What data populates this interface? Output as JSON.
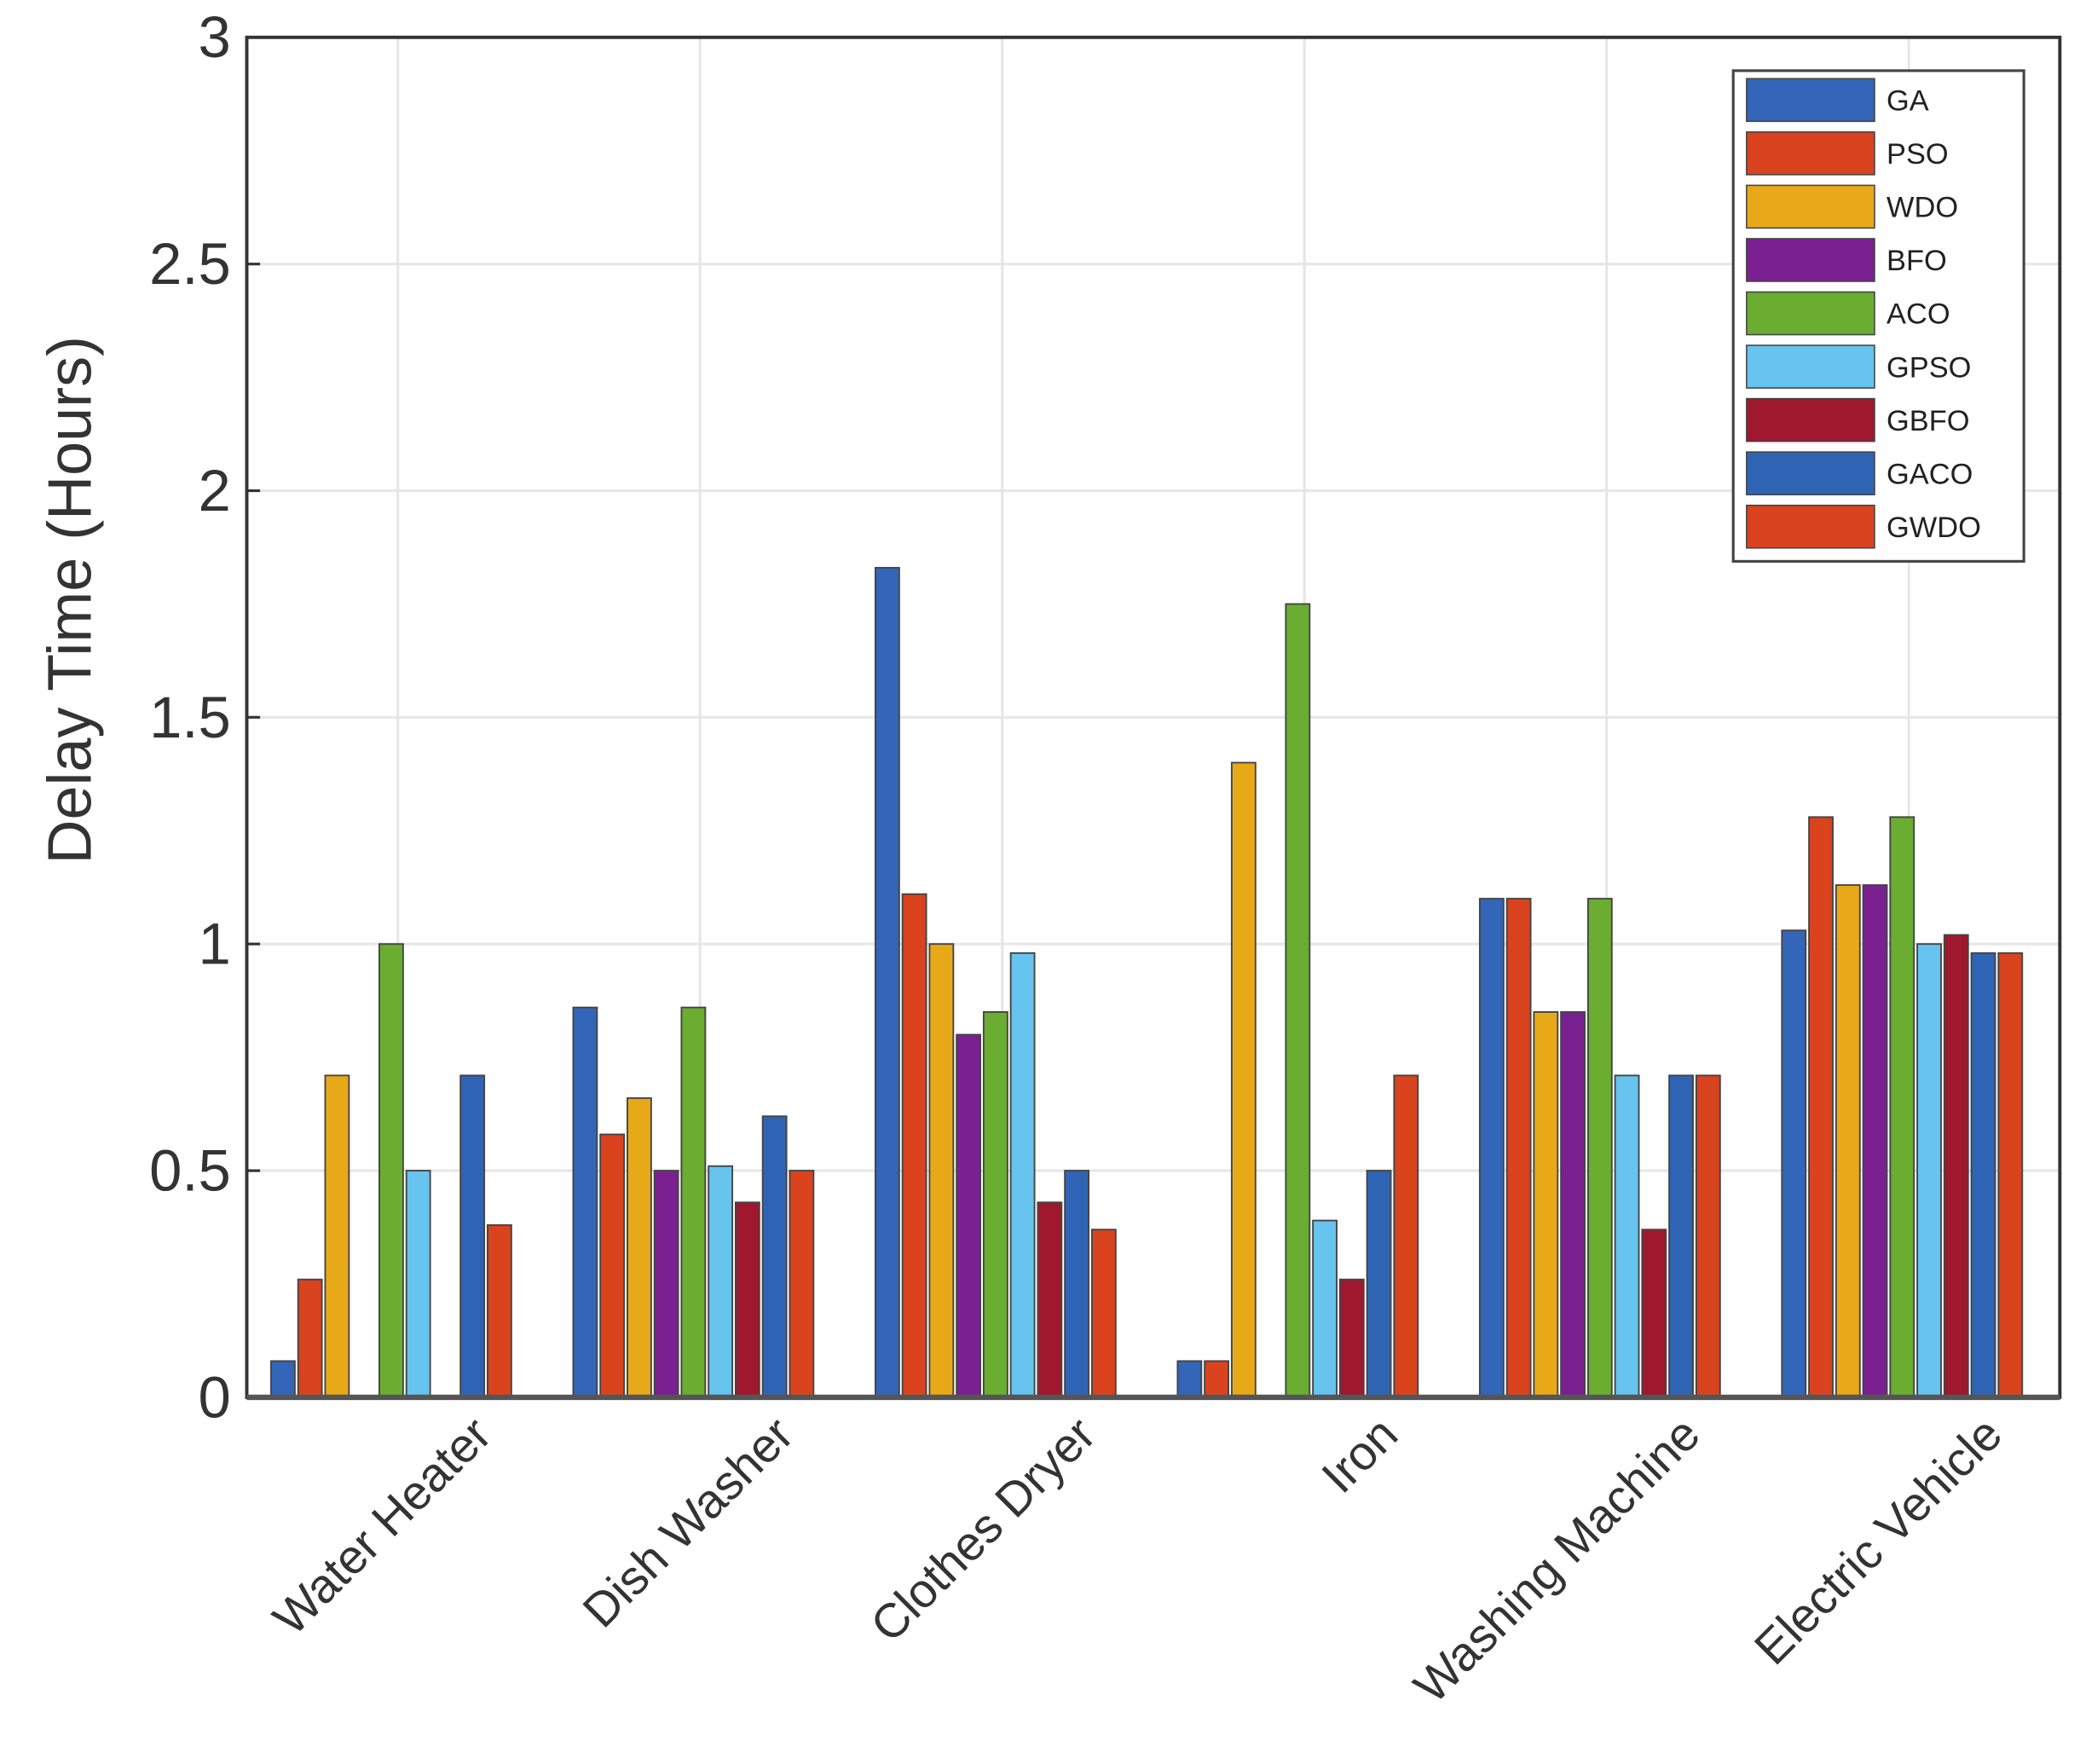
{
  "chart_data": {
    "type": "bar",
    "y_label": "Delay Time (Hours)",
    "categories": [
      "Water Heater",
      "Dish Washer",
      "Clothes Dryer",
      "Iron",
      "Washing Machine",
      "Electric Vehicle"
    ],
    "series": [
      {
        "name": "GA",
        "color": "#3366b8",
        "values": [
          0.08,
          0.86,
          1.83,
          0.08,
          1.1,
          1.03
        ]
      },
      {
        "name": "PSO",
        "color": "#d9431e",
        "values": [
          0.26,
          0.58,
          1.11,
          0.08,
          1.1,
          1.28
        ]
      },
      {
        "name": "WDO",
        "color": "#e8a919",
        "values": [
          0.71,
          0.66,
          1.0,
          1.4,
          0.85,
          1.13
        ]
      },
      {
        "name": "BFO",
        "color": "#7b2090",
        "values": [
          0,
          0.5,
          0.8,
          0,
          0.85,
          1.13
        ]
      },
      {
        "name": "ACO",
        "color": "#6aad30",
        "values": [
          1.0,
          0.86,
          0.85,
          1.75,
          1.1,
          1.28
        ]
      },
      {
        "name": "GPSO",
        "color": "#66c4ee",
        "values": [
          0.5,
          0.51,
          0.98,
          0.39,
          0.71,
          1.0
        ]
      },
      {
        "name": "GBFO",
        "color": "#a0182e",
        "values": [
          0,
          0.43,
          0.43,
          0.26,
          0.37,
          1.02
        ]
      },
      {
        "name": "GACO",
        "color": "#2f64b5",
        "values": [
          0.71,
          0.62,
          0.5,
          0.5,
          0.71,
          0.98
        ]
      },
      {
        "name": "GWDO",
        "color": "#d9431e",
        "values": [
          0.38,
          0.5,
          0.37,
          0.71,
          0.71,
          0.98
        ]
      }
    ],
    "ylim": [
      0,
      3
    ],
    "yticks": [
      0,
      0.5,
      1,
      1.5,
      2,
      2.5,
      3
    ],
    "grid": true,
    "legend": "upper-right"
  }
}
